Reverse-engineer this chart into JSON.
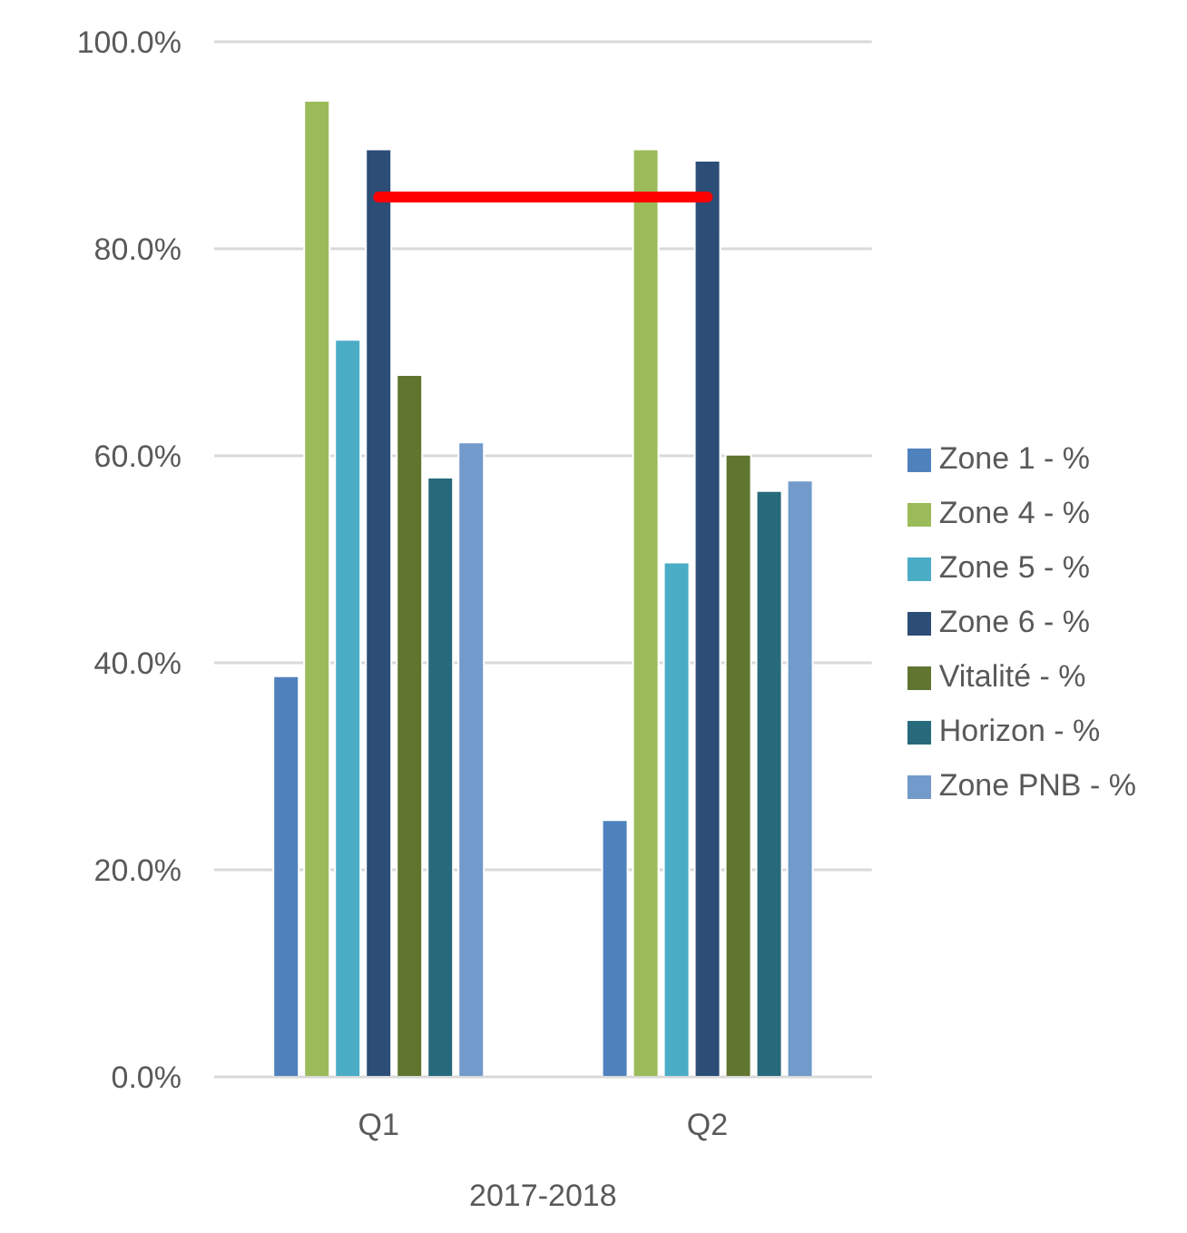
{
  "chart_data": {
    "type": "bar",
    "categories": [
      "Q1",
      "Q2"
    ],
    "xlabel": "2017-2018",
    "series": [
      {
        "name": "Zone 1 - %",
        "color": "#4f81bd",
        "values": [
          38.7,
          24.8
        ]
      },
      {
        "name": "Zone 4 - %",
        "color": "#9bbb59",
        "values": [
          94.3,
          89.6
        ]
      },
      {
        "name": "Zone 5 - %",
        "color": "#4bacc6",
        "values": [
          71.2,
          49.7
        ]
      },
      {
        "name": "Zone 6 - %",
        "color": "#2c4d75",
        "values": [
          89.6,
          88.5
        ]
      },
      {
        "name": "Vitalité - %",
        "color": "#5f7530",
        "values": [
          67.8,
          60.1
        ]
      },
      {
        "name": "Horizon - %",
        "color": "#276a7c",
        "values": [
          57.9,
          56.6
        ]
      },
      {
        "name": "Zone PNB - %",
        "color": "#729aca",
        "values": [
          61.3,
          57.6
        ]
      },
      {
        "type": "line",
        "color": "#ff0000",
        "values": [
          85,
          85
        ]
      }
    ],
    "ylim": [
      0,
      100
    ],
    "yticks": [
      {
        "value": 0,
        "label": "0.0%"
      },
      {
        "value": 20,
        "label": "20.0%"
      },
      {
        "value": 40,
        "label": "40.0%"
      },
      {
        "value": 60,
        "label": "60.0%"
      },
      {
        "value": 80,
        "label": "80.0%"
      },
      {
        "value": 100,
        "label": "100.0%"
      }
    ],
    "grid": "y",
    "legend": "right",
    "marker": "none"
  }
}
